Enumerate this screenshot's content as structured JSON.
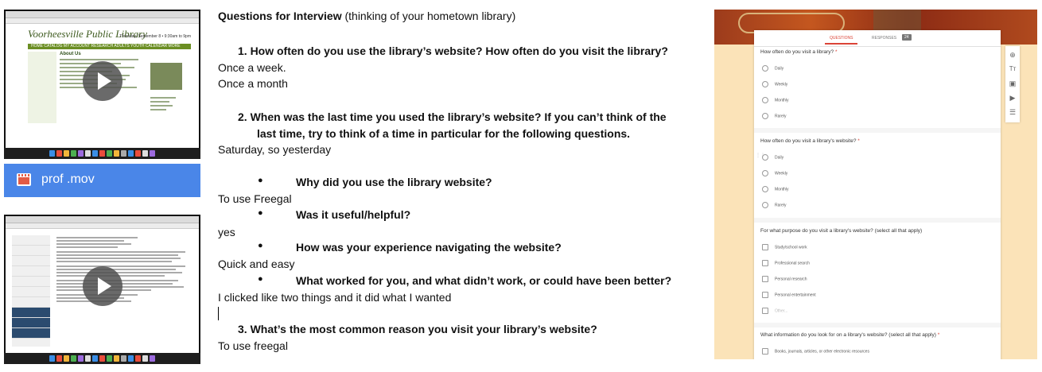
{
  "left_panel": {
    "video1": {
      "site_logo": "Voorheesville Public Library",
      "site_date": "Thursday, September 8 • 9:30am to 9pm",
      "site_nav": "HOME  CATALOG  MY ACCOUNT  RESEARCH  ADULTS  YOUTH  CALENDAR  MORE",
      "section_heading": "About Us"
    },
    "file": {
      "name": "prof .mov"
    }
  },
  "document": {
    "title_bold": "Questions for Interview",
    "title_rest": " (thinking of your hometown library)",
    "q1": "1.   How often do you use the library’s website? How often do you visit the library?",
    "a1a": "Once a week.",
    "a1b": "Once a month",
    "q2_line1": "2.   When was the last time you used the library’s website? If you can’t think of the",
    "q2_line2": "last time, try to think of a time in particular for the following questions.",
    "a2": "Saturday, so yesterday",
    "bullet": "●",
    "b1": "Why did you use the library website?",
    "a_b1": "To use Freegal",
    "b2": "Was it useful/helpful?",
    "a_b2": "yes",
    "b3": "How was your experience navigating the website?",
    "a_b3": "Quick and easy",
    "b4": "What worked for you, and what didn’t work, or could have been better?",
    "a_b4": "I clicked like two things and it did what I wanted",
    "q3": "3.   What’s the most common reason you visit your library’s website?",
    "a3": "To use freegal"
  },
  "form": {
    "tab_questions": "QUESTIONS",
    "tab_responses": "RESPONSES",
    "responses_count": "24",
    "q1": {
      "title": "How often do you visit a library?",
      "required": "*",
      "options": [
        "Daily",
        "Weekly",
        "Monthly",
        "Rarely"
      ]
    },
    "q2": {
      "title": "How often do you visit a library's website?",
      "required": "*",
      "options": [
        "Daily",
        "Weekly",
        "Monthly",
        "Rarely"
      ]
    },
    "q3": {
      "title": "For what purpose do you visit a library's website? (select all that apply)",
      "options": [
        "Study/school work",
        "Professional search",
        "Personal research",
        "Personal entertainment",
        "Other..."
      ]
    },
    "q4": {
      "title": "What information do you look for on a library's website? (select all that apply)",
      "required": "*",
      "options": [
        "Books, journals, articles, or other electronic resources"
      ]
    },
    "colors": {
      "accent": "#db4437",
      "background": "#fbe3b8"
    },
    "tool_icons": [
      "add-question-icon",
      "add-title-icon",
      "add-image-icon",
      "add-video-icon",
      "add-section-icon"
    ]
  }
}
